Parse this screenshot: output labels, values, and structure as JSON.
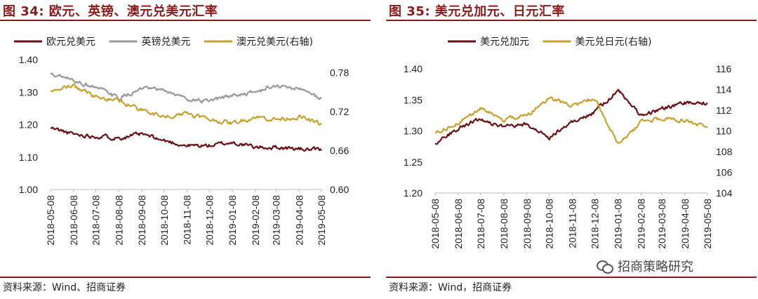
{
  "charts": [
    {
      "title": "图 34: 欧元、英镑、澳元兑美元汇率",
      "source": "资料来源：Wind、招商证券",
      "chart_data": {
        "type": "line",
        "x_dates": [
          "2018-05-08",
          "2018-06-08",
          "2018-07-08",
          "2018-08-08",
          "2018-09-08",
          "2018-10-08",
          "2018-11-08",
          "2018-12-08",
          "2019-01-08",
          "2019-02-08",
          "2019-03-08",
          "2019-04-08",
          "2019-05-08"
        ],
        "x_ticks": [
          "2018-05-08",
          "2018-06-08",
          "2018-07-08",
          "2018-08-08",
          "2018-09-08",
          "2018-10-08",
          "2018-11-08",
          "2018-12-08",
          "2019-01-08",
          "2019-02-08",
          "2019-03-08",
          "2019-04-08",
          "2019-05-08"
        ],
        "y_left": {
          "range": [
            1.0,
            1.4
          ],
          "ticks": [
            "1.00",
            "1.10",
            "1.20",
            "1.30",
            "1.40"
          ]
        },
        "y_right": {
          "range": [
            0.6,
            0.8
          ],
          "ticks": [
            "0.60",
            "0.66",
            "0.72",
            "0.78"
          ]
        },
        "legend_position": "top",
        "series": [
          {
            "name": "欧元兑美元",
            "color": "#6b0f14",
            "axis": "left",
            "values": [
              1.19,
              1.17,
              1.165,
              1.16,
              1.17,
              1.15,
              1.135,
              1.135,
              1.145,
              1.13,
              1.13,
              1.125,
              1.12
            ]
          },
          {
            "name": "英镑兑美元",
            "color": "#999999",
            "axis": "left",
            "values": [
              1.355,
              1.335,
              1.315,
              1.28,
              1.31,
              1.305,
              1.28,
              1.27,
              1.29,
              1.3,
              1.32,
              1.31,
              1.28
            ]
          },
          {
            "name": "澳元兑美元(右轴)",
            "color": "#c9a130",
            "axis": "right",
            "values": [
              0.752,
              0.76,
              0.742,
              0.738,
              0.722,
              0.712,
              0.718,
              0.708,
              0.702,
              0.712,
              0.708,
              0.712,
              0.7
            ]
          }
        ]
      }
    },
    {
      "title": "图 35: 美元兑加元、日元汇率",
      "source": "资料来源：Wind，招商证券",
      "chart_data": {
        "type": "line",
        "x_dates": [
          "2018-05-08",
          "2018-06-08",
          "2018-07-08",
          "2018-08-08",
          "2018-09-08",
          "2018-10-08",
          "2018-11-08",
          "2018-12-08",
          "2019-01-08",
          "2019-02-08",
          "2019-03-08",
          "2019-04-08",
          "2019-05-08"
        ],
        "x_ticks": [
          "2018-05-08",
          "2018-06-08",
          "2018-07-08",
          "2018-08-08",
          "2018-09-08",
          "2018-10-08",
          "2018-11-08",
          "2018-12-08",
          "2019-01-08",
          "2019-02-08",
          "2019-03-08",
          "2019-04-08",
          "2019-05-08"
        ],
        "y_left": {
          "range": [
            1.2,
            1.4
          ],
          "ticks": [
            "1.20",
            "1.25",
            "1.30",
            "1.35",
            "1.40"
          ]
        },
        "y_right": {
          "range": [
            104,
            116
          ],
          "ticks": [
            "104",
            "106",
            "108",
            "110",
            "112",
            "114",
            "116"
          ]
        },
        "legend_position": "top",
        "series": [
          {
            "name": "美元兑加元",
            "color": "#6b0f14",
            "axis": "left",
            "values": [
              1.28,
              1.305,
              1.32,
              1.305,
              1.31,
              1.29,
              1.315,
              1.33,
              1.365,
              1.325,
              1.335,
              1.345,
              1.345
            ]
          },
          {
            "name": "美元兑日元(右轴)",
            "color": "#c9a130",
            "axis": "right",
            "values": [
              109.8,
              110.8,
              112.2,
              111.0,
              111.5,
              113.2,
              112.4,
              113.2,
              108.6,
              110.8,
              111.2,
              111.0,
              110.3
            ]
          }
        ]
      }
    }
  ],
  "watermark": "招商策略研究"
}
